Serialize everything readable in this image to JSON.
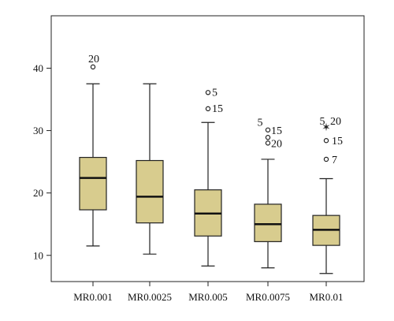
{
  "chart_data": {
    "type": "boxplot",
    "title": "",
    "xlabel": "",
    "ylabel": "",
    "ylim": [
      5.8,
      48.4
    ],
    "yticks": [
      10,
      20,
      30,
      40
    ],
    "grid": false,
    "legend": "none",
    "colors": {
      "box_fill": "#d8cc8e",
      "stroke": "#222222"
    },
    "categories": [
      "MR0.001",
      "MR0.0025",
      "MR0.005",
      "MR0.0075",
      "MR0.01"
    ],
    "boxes": [
      {
        "category": "MR0.001",
        "whisker_low": 11.5,
        "q1": 17.3,
        "median": 22.4,
        "q3": 25.7,
        "whisker_high": 37.5,
        "outliers": [
          {
            "value": 40.2,
            "marker": "circle",
            "label": "20"
          }
        ]
      },
      {
        "category": "MR0.0025",
        "whisker_low": 10.2,
        "q1": 15.2,
        "median": 19.4,
        "q3": 25.2,
        "whisker_high": 37.5,
        "outliers": []
      },
      {
        "category": "MR0.005",
        "whisker_low": 8.3,
        "q1": 13.1,
        "median": 16.7,
        "q3": 20.5,
        "whisker_high": 31.3,
        "outliers": [
          {
            "value": 36.1,
            "marker": "circle",
            "label": "5"
          },
          {
            "value": 33.5,
            "marker": "circle",
            "label": "15"
          }
        ]
      },
      {
        "category": "MR0.0075",
        "whisker_low": 8.0,
        "q1": 12.2,
        "median": 15.0,
        "q3": 18.2,
        "whisker_high": 25.4,
        "outliers": [
          {
            "value": 30.1,
            "marker": "circle",
            "label": "15"
          },
          {
            "value": 28.9,
            "marker": "circle",
            "label": ""
          },
          {
            "value": 28.0,
            "marker": "circle",
            "label": "20"
          },
          {
            "value": 30.4,
            "marker": "none",
            "label": "5"
          }
        ]
      },
      {
        "category": "MR0.01",
        "whisker_low": 7.1,
        "q1": 11.6,
        "median": 14.1,
        "q3": 16.4,
        "whisker_high": 22.3,
        "outliers": [
          {
            "value": 30.6,
            "marker": "star",
            "label": "5"
          },
          {
            "value": 30.6,
            "marker": "none",
            "label": "20"
          },
          {
            "value": 28.4,
            "marker": "circle",
            "label": "15"
          },
          {
            "value": 25.4,
            "marker": "circle",
            "label": "7"
          }
        ]
      }
    ]
  }
}
